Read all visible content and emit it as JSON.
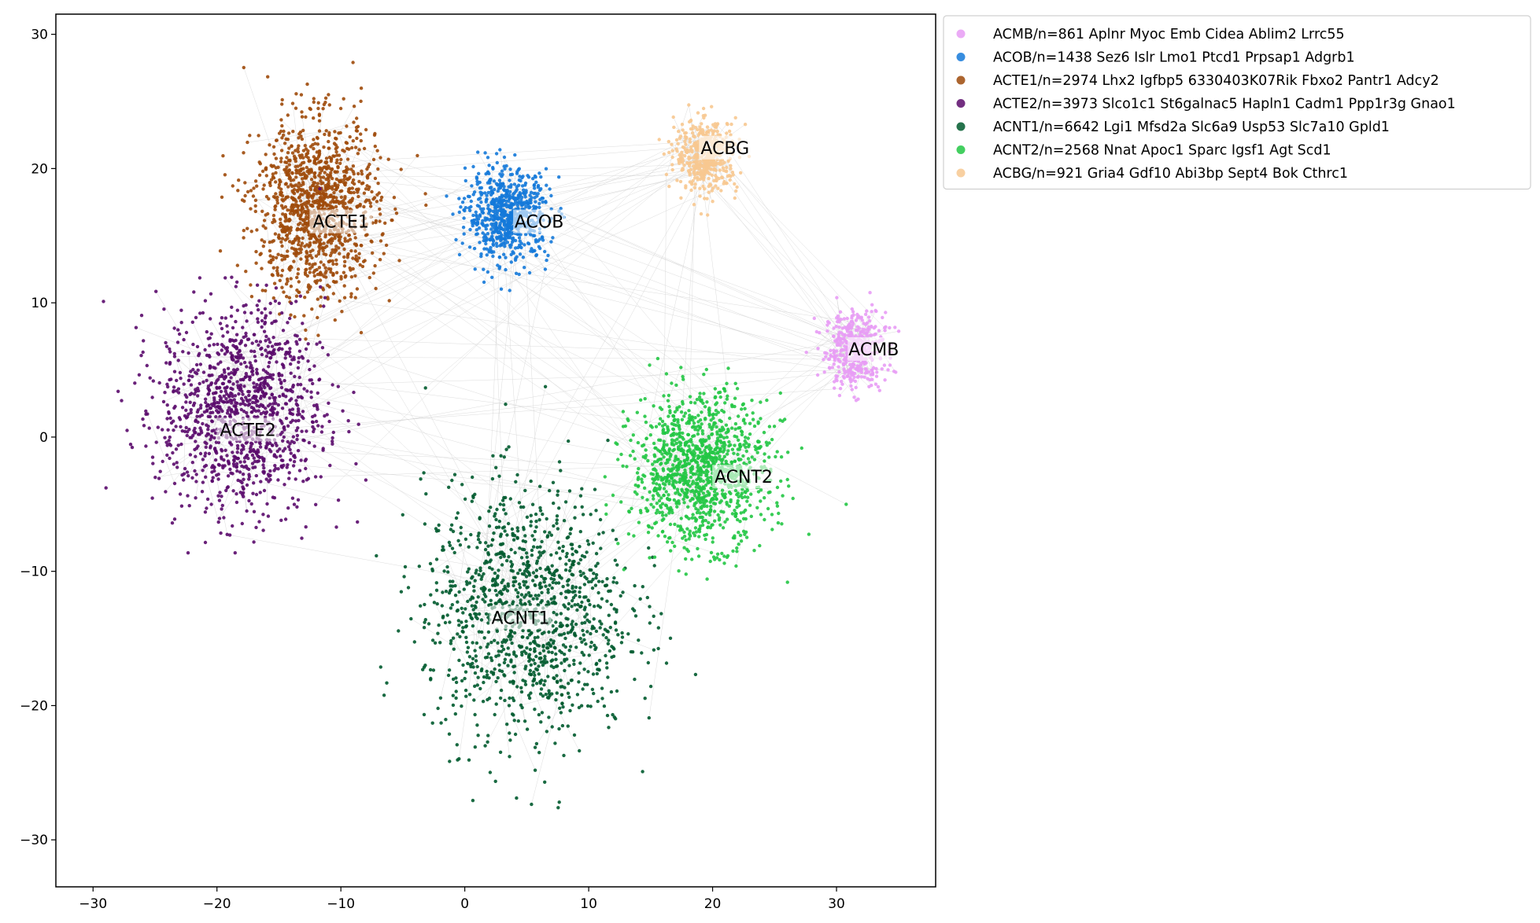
{
  "chart_data": {
    "type": "scatter",
    "title": "",
    "xlabel": "",
    "ylabel": "",
    "xlim": [
      -33,
      38
    ],
    "ylim": [
      -33.5,
      31.5
    ],
    "xticks": [
      -30,
      -20,
      -10,
      0,
      10,
      20,
      30
    ],
    "yticks": [
      -30,
      -20,
      -10,
      0,
      10,
      20,
      30
    ],
    "xtick_labels": [
      "−30",
      "−20",
      "−10",
      "0",
      "10",
      "20",
      "30"
    ],
    "ytick_labels": [
      "−30",
      "−20",
      "−10",
      "0",
      "10",
      "20",
      "30"
    ],
    "grid": false,
    "legend_placement": "outside-right-top",
    "edge_color": "#808080",
    "series": [
      {
        "name": "ACMB/n=861 Aplnr Myoc Emb Cidea Ablim2 Lrrc55",
        "label": "ACMB",
        "color": "#e89cf5",
        "n": 861,
        "center": [
          31.5,
          6.5
        ],
        "spread": [
          2.2,
          2.6
        ],
        "label_pos": [
          33,
          6.5
        ]
      },
      {
        "name": "ACOB/n=1438 Sez6 Islr Lmo1 Ptcd1 Prpsap1 Adgrb1",
        "label": "ACOB",
        "color": "#1479d9",
        "n": 1438,
        "center": [
          3.5,
          16.5
        ],
        "spread": [
          3.0,
          3.0
        ],
        "label_pos": [
          6,
          16
        ]
      },
      {
        "name": "ACTE1/n=2974 Lhx2 Igfbp5 6330403K07Rik Fbxo2 Pantr1 Adcy2",
        "label": "ACTE1",
        "color": "#9e4a0a",
        "n": 2974,
        "center": [
          -12,
          17
        ],
        "spread": [
          4.5,
          6.0
        ],
        "label_pos": [
          -10,
          16
        ]
      },
      {
        "name": "ACTE2/n=3973 Slco1c1 St6galnac5 Hapln1 Cadm1 Ppp1r3g Gnao1",
        "label": "ACTE2",
        "color": "#5a0a6b",
        "n": 3973,
        "center": [
          -18,
          2
        ],
        "spread": [
          6.0,
          7.0
        ],
        "label_pos": [
          -17.5,
          0.5
        ]
      },
      {
        "name": "ACNT1/n=6642 Lgi1 Mfsd2a Slc6a9 Usp53 Slc7a10 Gpld1",
        "label": "ACNT1",
        "color": "#005a2e",
        "n": 6642,
        "center": [
          5,
          -13
        ],
        "spread": [
          7.5,
          8.5
        ],
        "label_pos": [
          4.5,
          -13.5
        ]
      },
      {
        "name": "ACNT2/n=2568 Nnat Apoc1 Sparc Igsf1 Agt Scd1",
        "label": "ACNT2",
        "color": "#22c744",
        "n": 2568,
        "center": [
          19,
          -2.5
        ],
        "spread": [
          5.0,
          5.0
        ],
        "label_pos": [
          22.5,
          -3
        ]
      },
      {
        "name": "ACBG/n=921 Gria4 Gdf10 Abi3bp Sept4 Bok Cthrc1",
        "label": "ACBG",
        "color": "#f7c890",
        "n": 921,
        "center": [
          19.5,
          21
        ],
        "spread": [
          2.3,
          2.4
        ],
        "label_pos": [
          21,
          21.5
        ]
      }
    ]
  }
}
